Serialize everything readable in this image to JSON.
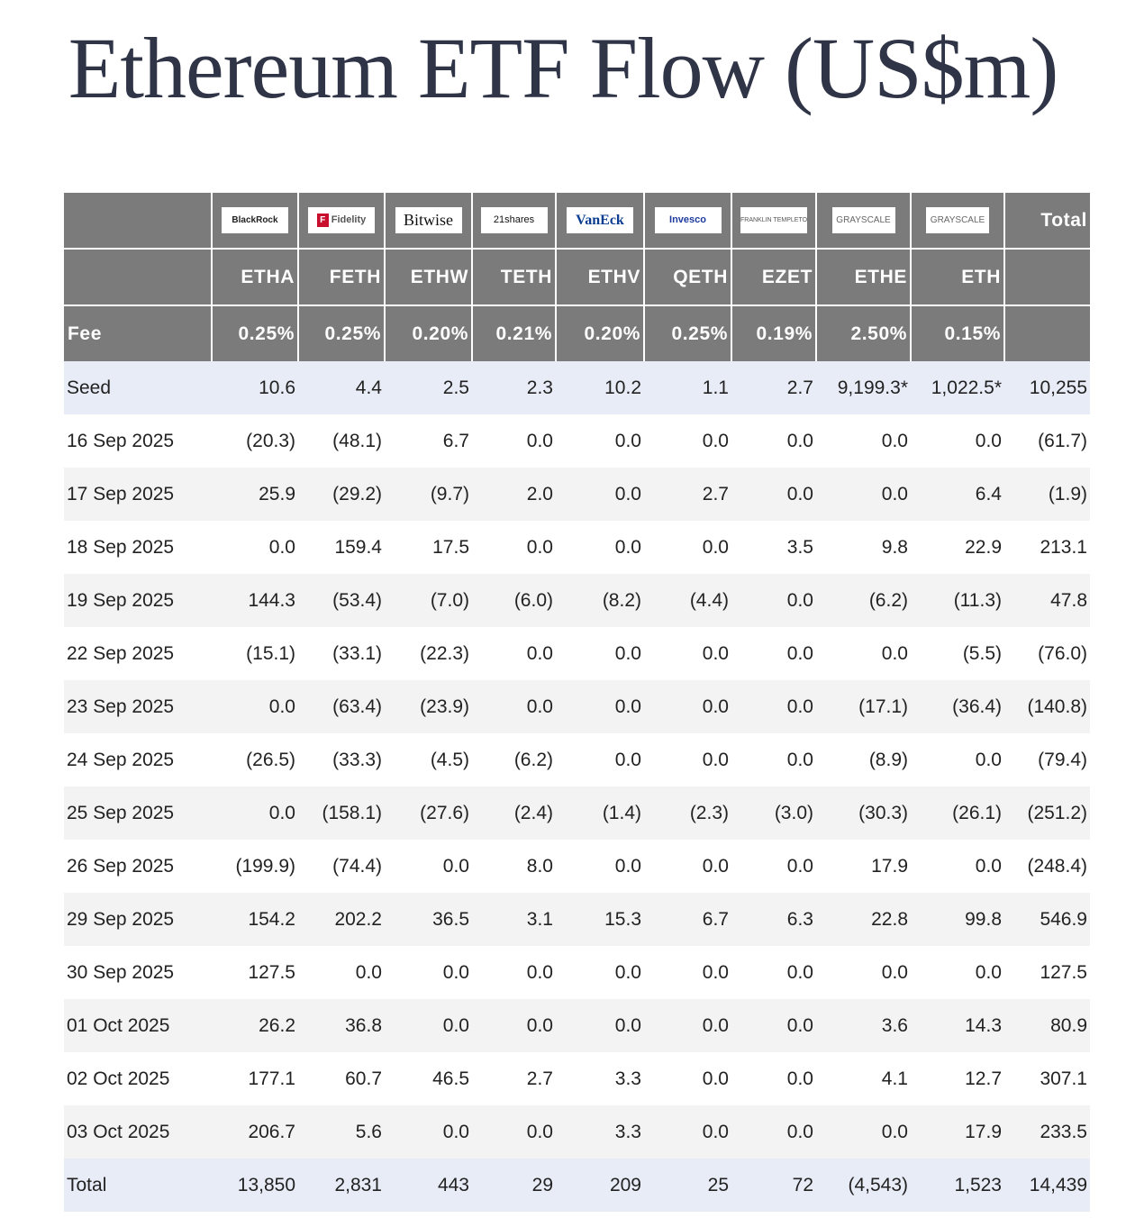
{
  "title": "Ethereum ETF Flow (US$m)",
  "colors": {
    "header_bg": "#7b7b7b",
    "negative": "#e0383e",
    "highlight_row": "#e8ecf7",
    "title": "#2f3447"
  },
  "issuers": [
    {
      "logo": "BlackRock",
      "ticker": "ETHA",
      "fee": "0.25%"
    },
    {
      "logo": "Fidelity",
      "ticker": "FETH",
      "fee": "0.25%"
    },
    {
      "logo": "Bitwise",
      "ticker": "ETHW",
      "fee": "0.20%"
    },
    {
      "logo": "21shares",
      "ticker": "TETH",
      "fee": "0.21%"
    },
    {
      "logo": "VanEck",
      "ticker": "ETHV",
      "fee": "0.20%"
    },
    {
      "logo": "Invesco",
      "ticker": "QETH",
      "fee": "0.25%"
    },
    {
      "logo": "FRANKLIN TEMPLETON",
      "ticker": "EZET",
      "fee": "0.19%"
    },
    {
      "logo": "GRAYSCALE",
      "ticker": "ETHE",
      "fee": "2.50%"
    },
    {
      "logo": "GRAYSCALE",
      "ticker": "ETH",
      "fee": "0.15%"
    }
  ],
  "header": {
    "total_label": "Total",
    "fee_label": "Fee"
  },
  "rows": [
    {
      "label": "Seed",
      "values": [
        "10.6",
        "4.4",
        "2.5",
        "2.3",
        "10.2",
        "1.1",
        "2.7",
        "9,199.3*",
        "1,022.5*",
        "10,255"
      ]
    },
    {
      "label": "16 Sep 2025",
      "values": [
        "(20.3)",
        "(48.1)",
        "6.7",
        "0.0",
        "0.0",
        "0.0",
        "0.0",
        "0.0",
        "0.0",
        "(61.7)"
      ]
    },
    {
      "label": "17 Sep 2025",
      "values": [
        "25.9",
        "(29.2)",
        "(9.7)",
        "2.0",
        "0.0",
        "2.7",
        "0.0",
        "0.0",
        "6.4",
        "(1.9)"
      ]
    },
    {
      "label": "18 Sep 2025",
      "values": [
        "0.0",
        "159.4",
        "17.5",
        "0.0",
        "0.0",
        "0.0",
        "3.5",
        "9.8",
        "22.9",
        "213.1"
      ]
    },
    {
      "label": "19 Sep 2025",
      "values": [
        "144.3",
        "(53.4)",
        "(7.0)",
        "(6.0)",
        "(8.2)",
        "(4.4)",
        "0.0",
        "(6.2)",
        "(11.3)",
        "47.8"
      ]
    },
    {
      "label": "22 Sep 2025",
      "values": [
        "(15.1)",
        "(33.1)",
        "(22.3)",
        "0.0",
        "0.0",
        "0.0",
        "0.0",
        "0.0",
        "(5.5)",
        "(76.0)"
      ]
    },
    {
      "label": "23 Sep 2025",
      "values": [
        "0.0",
        "(63.4)",
        "(23.9)",
        "0.0",
        "0.0",
        "0.0",
        "0.0",
        "(17.1)",
        "(36.4)",
        "(140.8)"
      ]
    },
    {
      "label": "24 Sep 2025",
      "values": [
        "(26.5)",
        "(33.3)",
        "(4.5)",
        "(6.2)",
        "0.0",
        "0.0",
        "0.0",
        "(8.9)",
        "0.0",
        "(79.4)"
      ]
    },
    {
      "label": "25 Sep 2025",
      "values": [
        "0.0",
        "(158.1)",
        "(27.6)",
        "(2.4)",
        "(1.4)",
        "(2.3)",
        "(3.0)",
        "(30.3)",
        "(26.1)",
        "(251.2)"
      ]
    },
    {
      "label": "26 Sep 2025",
      "values": [
        "(199.9)",
        "(74.4)",
        "0.0",
        "8.0",
        "0.0",
        "0.0",
        "0.0",
        "17.9",
        "0.0",
        "(248.4)"
      ]
    },
    {
      "label": "29 Sep 2025",
      "values": [
        "154.2",
        "202.2",
        "36.5",
        "3.1",
        "15.3",
        "6.7",
        "6.3",
        "22.8",
        "99.8",
        "546.9"
      ]
    },
    {
      "label": "30 Sep 2025",
      "values": [
        "127.5",
        "0.0",
        "0.0",
        "0.0",
        "0.0",
        "0.0",
        "0.0",
        "0.0",
        "0.0",
        "127.5"
      ]
    },
    {
      "label": "01 Oct 2025",
      "values": [
        "26.2",
        "36.8",
        "0.0",
        "0.0",
        "0.0",
        "0.0",
        "0.0",
        "3.6",
        "14.3",
        "80.9"
      ]
    },
    {
      "label": "02 Oct 2025",
      "values": [
        "177.1",
        "60.7",
        "46.5",
        "2.7",
        "3.3",
        "0.0",
        "0.0",
        "4.1",
        "12.7",
        "307.1"
      ]
    },
    {
      "label": "03 Oct 2025",
      "values": [
        "206.7",
        "5.6",
        "0.0",
        "0.0",
        "3.3",
        "0.0",
        "0.0",
        "0.0",
        "17.9",
        "233.5"
      ]
    },
    {
      "label": "Total",
      "values": [
        "13,850",
        "2,831",
        "443",
        "29",
        "209",
        "25",
        "72",
        "(4,543)",
        "1,523",
        "14,439"
      ]
    }
  ]
}
